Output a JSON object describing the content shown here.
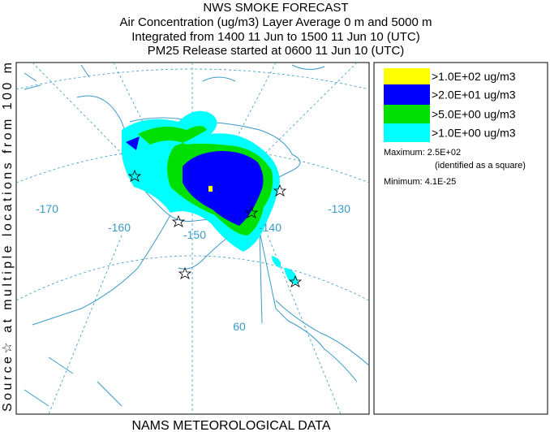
{
  "header": {
    "lines": [
      "NWS SMOKE FORECAST",
      "Air Concentration (ug/m3) Layer Average    0 m and  5000 m",
      "Integrated from 1400 11 Jun to 1500 11 Jun 10 (UTC)",
      "PM25 Release started at 0600 11 Jun 10 (UTC)"
    ]
  },
  "side_label": "Source☆ at multiple locations    from   100 m",
  "footer": "NAMS METEOROLOGICAL DATA",
  "map_labels": [
    "-170",
    "-160",
    "-150",
    "-140",
    "-130",
    "60"
  ],
  "legend": {
    "items": [
      {
        "label": ">1.0E+02 ug/m3",
        "color": "#ffff00"
      },
      {
        "label": ">2.0E+01 ug/m3",
        "color": "#0000ff"
      },
      {
        "label": ">5.0E+00 ug/m3",
        "color": "#00e000"
      },
      {
        "label": ">1.0E+00 ug/m3",
        "color": "#00ffff"
      }
    ],
    "maximum": "Maximum: 2.5E+02",
    "maximum_note": "(identified as a square)",
    "minimum": "Minimum: 4.1E-25"
  }
}
